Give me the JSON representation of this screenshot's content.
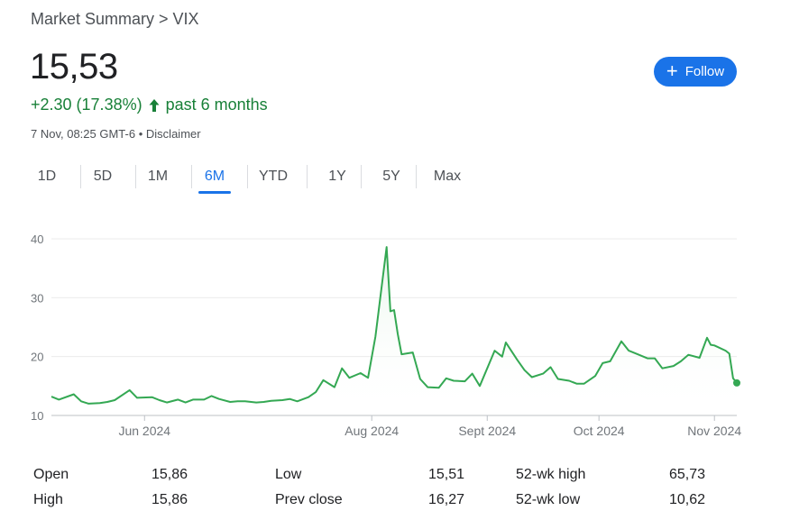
{
  "breadcrumb": "Market Summary > VIX",
  "price": "15,53",
  "change": {
    "amount": "+2.30 (17.38%)",
    "period": "past 6 months",
    "color": "#188038"
  },
  "meta": {
    "timestamp": "7 Nov, 08:25 GMT-6",
    "separator": "•",
    "disclaimer": "Disclaimer"
  },
  "follow": {
    "label": "Follow",
    "icon": "plus-icon"
  },
  "tabs": [
    {
      "label": "1D",
      "active": false
    },
    {
      "label": "5D",
      "active": false
    },
    {
      "label": "1M",
      "active": false
    },
    {
      "label": "6M",
      "active": true
    },
    {
      "label": "YTD",
      "active": false
    },
    {
      "label": "1Y",
      "active": false
    },
    {
      "label": "5Y",
      "active": false
    },
    {
      "label": "Max",
      "active": false
    }
  ],
  "stats": [
    {
      "label": "Open",
      "value": "15,86"
    },
    {
      "label": "Low",
      "value": "15,51"
    },
    {
      "label": "52-wk high",
      "value": "65,73"
    },
    {
      "label": "High",
      "value": "15,86"
    },
    {
      "label": "Prev close",
      "value": "16,27"
    },
    {
      "label": "52-wk low",
      "value": "10,62"
    }
  ],
  "chart_data": {
    "type": "area",
    "title": "",
    "xlabel": "",
    "ylabel": "",
    "ylim": [
      10,
      40
    ],
    "yticks": [
      10,
      20,
      30,
      40
    ],
    "xlim": [
      "2024-05-07",
      "2024-11-07"
    ],
    "xticks": [
      {
        "date": "2024-06-01",
        "label": "Jun 2024"
      },
      {
        "date": "2024-08-01",
        "label": "Aug 2024"
      },
      {
        "date": "2024-09-01",
        "label": "Sept 2024"
      },
      {
        "date": "2024-10-01",
        "label": "Oct 2024"
      },
      {
        "date": "2024-11-01",
        "label": "Nov 2024"
      }
    ],
    "grid": true,
    "line_color": "#34a853",
    "fill_color": "#e6f4ea",
    "series": [
      {
        "x": [
          "2024-05-07",
          "2024-05-09",
          "2024-05-13",
          "2024-05-15",
          "2024-05-17",
          "2024-05-20",
          "2024-05-22",
          "2024-05-24",
          "2024-05-28",
          "2024-05-30",
          "2024-06-03",
          "2024-06-05",
          "2024-06-07",
          "2024-06-10",
          "2024-06-12",
          "2024-06-14",
          "2024-06-17",
          "2024-06-19",
          "2024-06-21",
          "2024-06-24",
          "2024-06-26",
          "2024-06-28",
          "2024-07-01",
          "2024-07-03",
          "2024-07-05",
          "2024-07-08",
          "2024-07-10",
          "2024-07-12",
          "2024-07-15",
          "2024-07-17",
          "2024-07-19",
          "2024-07-22",
          "2024-07-24",
          "2024-07-26",
          "2024-07-29",
          "2024-07-31",
          "2024-08-02",
          "2024-08-05",
          "2024-08-06",
          "2024-08-07",
          "2024-08-08",
          "2024-08-09",
          "2024-08-12",
          "2024-08-14",
          "2024-08-16",
          "2024-08-19",
          "2024-08-21",
          "2024-08-23",
          "2024-08-26",
          "2024-08-28",
          "2024-08-30",
          "2024-09-03",
          "2024-09-05",
          "2024-09-06",
          "2024-09-09",
          "2024-09-11",
          "2024-09-13",
          "2024-09-16",
          "2024-09-18",
          "2024-09-20",
          "2024-09-23",
          "2024-09-25",
          "2024-09-27",
          "2024-09-30",
          "2024-10-02",
          "2024-10-04",
          "2024-10-07",
          "2024-10-09",
          "2024-10-11",
          "2024-10-14",
          "2024-10-16",
          "2024-10-18",
          "2024-10-21",
          "2024-10-23",
          "2024-10-25",
          "2024-10-28",
          "2024-10-30",
          "2024-10-31",
          "2024-11-01",
          "2024-11-04",
          "2024-11-05",
          "2024-11-06",
          "2024-11-07"
        ],
        "values": [
          13.2,
          12.7,
          13.6,
          12.4,
          12.0,
          12.1,
          12.3,
          12.6,
          14.3,
          13.0,
          13.1,
          12.6,
          12.2,
          12.7,
          12.2,
          12.7,
          12.7,
          13.3,
          12.8,
          12.3,
          12.4,
          12.4,
          12.2,
          12.3,
          12.5,
          12.6,
          12.8,
          12.4,
          13.1,
          14.0,
          16.0,
          14.8,
          18.0,
          16.4,
          17.2,
          16.4,
          23.4,
          38.6,
          27.7,
          27.9,
          23.8,
          20.4,
          20.7,
          16.2,
          14.8,
          14.7,
          16.3,
          15.9,
          15.8,
          17.1,
          15.0,
          21.0,
          20.0,
          22.4,
          19.5,
          17.7,
          16.5,
          17.1,
          18.2,
          16.2,
          15.9,
          15.4,
          15.4,
          16.7,
          18.9,
          19.2,
          22.6,
          21.0,
          20.5,
          19.7,
          19.7,
          18.0,
          18.4,
          19.2,
          20.3,
          19.8,
          23.2,
          22.0,
          21.9,
          21.0,
          20.5,
          16.3,
          15.53
        ]
      }
    ]
  }
}
